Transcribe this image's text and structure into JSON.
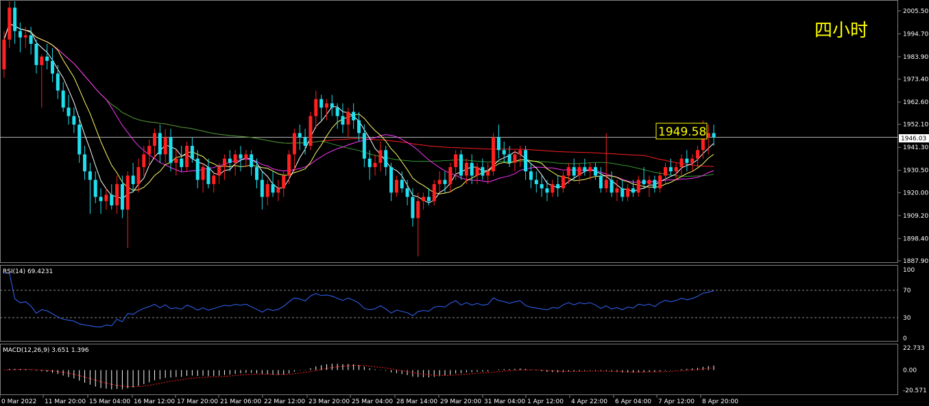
{
  "title_cn": "四小时",
  "price_label": "1949.58",
  "current_price": "1946.03",
  "colors": {
    "background": "#000000",
    "bull": "#ff2020",
    "bear": "#20e0f0",
    "ma_fast": "#ffffff",
    "ma_yellow": "#ffff66",
    "ma_magenta": "#ff33ff",
    "ma_green": "#339933",
    "ma_red": "#ff2020",
    "rsi_line": "#3366ff",
    "macd_signal": "#ff2020",
    "macd_hist": "#ffffff",
    "grid": "#808080",
    "title": "#ffff00"
  },
  "price_axis": {
    "ticks": [
      "2005.50",
      "1994.70",
      "1983.90",
      "1973.40",
      "1962.60",
      "1952.10",
      "1941.30",
      "1930.50",
      "1920.00",
      "1909.20",
      "1898.40",
      "1887.90"
    ]
  },
  "rsi_panel": {
    "label": "RSI(14) 69.4231",
    "ticks": [
      "100",
      "70",
      "30",
      "0"
    ],
    "level_high": 70,
    "level_low": 30
  },
  "macd_panel": {
    "label": "MACD(12,26,9) 3.651 1.396",
    "ticks": [
      "22.733",
      "0.00",
      "-20.571"
    ]
  },
  "time_axis": {
    "labels": [
      "0 Mar 2022",
      "11 Mar 20:00",
      "15 Mar 04:00",
      "16 Mar 12:00",
      "17 Mar 20:00",
      "21 Mar 06:00",
      "22 Mar 12:00",
      "23 Mar 20:00",
      "25 Mar 04:00",
      "28 Mar 14:00",
      "29 Mar 20:00",
      "31 Mar 04:00",
      "1 Apr 12:00",
      "4 Apr 22:00",
      "6 Apr 04:00",
      "7 Apr 12:00",
      "8 Apr 20:00"
    ]
  },
  "chart_data": {
    "type": "candlestick",
    "symbol_timeframe": "四小时",
    "y_range": [
      1887.9,
      2009
    ],
    "last_price": 1946.03,
    "candles": [
      {
        "o": 1978,
        "h": 1996,
        "l": 1974,
        "c": 1992
      },
      {
        "o": 1992,
        "h": 2010,
        "l": 1988,
        "c": 2007
      },
      {
        "o": 2007,
        "h": 2010,
        "l": 1990,
        "c": 1996
      },
      {
        "o": 1996,
        "h": 2000,
        "l": 1986,
        "c": 1993
      },
      {
        "o": 1993,
        "h": 1998,
        "l": 1988,
        "c": 1994
      },
      {
        "o": 1994,
        "h": 1998,
        "l": 1985,
        "c": 1990
      },
      {
        "o": 1990,
        "h": 1992,
        "l": 1976,
        "c": 1980
      },
      {
        "o": 1980,
        "h": 1985,
        "l": 1960,
        "c": 1984
      },
      {
        "o": 1984,
        "h": 1990,
        "l": 1978,
        "c": 1982
      },
      {
        "o": 1982,
        "h": 1988,
        "l": 1972,
        "c": 1976
      },
      {
        "o": 1976,
        "h": 1980,
        "l": 1964,
        "c": 1968
      },
      {
        "o": 1968,
        "h": 1972,
        "l": 1958,
        "c": 1960
      },
      {
        "o": 1960,
        "h": 1966,
        "l": 1952,
        "c": 1956
      },
      {
        "o": 1956,
        "h": 1960,
        "l": 1948,
        "c": 1952
      },
      {
        "o": 1952,
        "h": 1956,
        "l": 1934,
        "c": 1938
      },
      {
        "o": 1938,
        "h": 1942,
        "l": 1926,
        "c": 1930
      },
      {
        "o": 1930,
        "h": 1934,
        "l": 1910,
        "c": 1926
      },
      {
        "o": 1926,
        "h": 1930,
        "l": 1915,
        "c": 1918
      },
      {
        "o": 1918,
        "h": 1922,
        "l": 1910,
        "c": 1916
      },
      {
        "o": 1916,
        "h": 1922,
        "l": 1912,
        "c": 1919
      },
      {
        "o": 1919,
        "h": 1924,
        "l": 1912,
        "c": 1914
      },
      {
        "o": 1914,
        "h": 1928,
        "l": 1910,
        "c": 1924
      },
      {
        "o": 1924,
        "h": 1928,
        "l": 1908,
        "c": 1912
      },
      {
        "o": 1912,
        "h": 1930,
        "l": 1894,
        "c": 1928
      },
      {
        "o": 1928,
        "h": 1934,
        "l": 1920,
        "c": 1924
      },
      {
        "o": 1924,
        "h": 1936,
        "l": 1920,
        "c": 1932
      },
      {
        "o": 1932,
        "h": 1942,
        "l": 1928,
        "c": 1938
      },
      {
        "o": 1938,
        "h": 1945,
        "l": 1932,
        "c": 1942
      },
      {
        "o": 1942,
        "h": 1950,
        "l": 1936,
        "c": 1948
      },
      {
        "o": 1948,
        "h": 1952,
        "l": 1934,
        "c": 1938
      },
      {
        "o": 1938,
        "h": 1950,
        "l": 1934,
        "c": 1946
      },
      {
        "o": 1946,
        "h": 1950,
        "l": 1930,
        "c": 1934
      },
      {
        "o": 1934,
        "h": 1940,
        "l": 1928,
        "c": 1936
      },
      {
        "o": 1936,
        "h": 1942,
        "l": 1930,
        "c": 1932
      },
      {
        "o": 1932,
        "h": 1944,
        "l": 1930,
        "c": 1942
      },
      {
        "o": 1942,
        "h": 1946,
        "l": 1934,
        "c": 1936
      },
      {
        "o": 1936,
        "h": 1940,
        "l": 1922,
        "c": 1926
      },
      {
        "o": 1926,
        "h": 1934,
        "l": 1920,
        "c": 1932
      },
      {
        "o": 1932,
        "h": 1936,
        "l": 1922,
        "c": 1924
      },
      {
        "o": 1924,
        "h": 1930,
        "l": 1920,
        "c": 1928
      },
      {
        "o": 1928,
        "h": 1934,
        "l": 1924,
        "c": 1932
      },
      {
        "o": 1932,
        "h": 1938,
        "l": 1926,
        "c": 1936
      },
      {
        "o": 1936,
        "h": 1940,
        "l": 1930,
        "c": 1934
      },
      {
        "o": 1934,
        "h": 1940,
        "l": 1928,
        "c": 1938
      },
      {
        "o": 1938,
        "h": 1942,
        "l": 1930,
        "c": 1936
      },
      {
        "o": 1936,
        "h": 1940,
        "l": 1932,
        "c": 1938
      },
      {
        "o": 1938,
        "h": 1940,
        "l": 1928,
        "c": 1932
      },
      {
        "o": 1932,
        "h": 1936,
        "l": 1922,
        "c": 1926
      },
      {
        "o": 1926,
        "h": 1930,
        "l": 1912,
        "c": 1918
      },
      {
        "o": 1918,
        "h": 1926,
        "l": 1914,
        "c": 1924
      },
      {
        "o": 1924,
        "h": 1930,
        "l": 1918,
        "c": 1920
      },
      {
        "o": 1920,
        "h": 1926,
        "l": 1916,
        "c": 1922
      },
      {
        "o": 1922,
        "h": 1930,
        "l": 1918,
        "c": 1928
      },
      {
        "o": 1928,
        "h": 1940,
        "l": 1924,
        "c": 1938
      },
      {
        "o": 1938,
        "h": 1950,
        "l": 1930,
        "c": 1948
      },
      {
        "o": 1948,
        "h": 1952,
        "l": 1940,
        "c": 1946
      },
      {
        "o": 1946,
        "h": 1950,
        "l": 1938,
        "c": 1942
      },
      {
        "o": 1942,
        "h": 1958,
        "l": 1940,
        "c": 1956
      },
      {
        "o": 1956,
        "h": 1968,
        "l": 1950,
        "c": 1964
      },
      {
        "o": 1964,
        "h": 1966,
        "l": 1954,
        "c": 1960
      },
      {
        "o": 1960,
        "h": 1964,
        "l": 1954,
        "c": 1962
      },
      {
        "o": 1962,
        "h": 1966,
        "l": 1956,
        "c": 1960
      },
      {
        "o": 1960,
        "h": 1962,
        "l": 1950,
        "c": 1956
      },
      {
        "o": 1956,
        "h": 1962,
        "l": 1948,
        "c": 1952
      },
      {
        "o": 1952,
        "h": 1960,
        "l": 1946,
        "c": 1958
      },
      {
        "o": 1958,
        "h": 1962,
        "l": 1950,
        "c": 1954
      },
      {
        "o": 1954,
        "h": 1958,
        "l": 1944,
        "c": 1948
      },
      {
        "o": 1948,
        "h": 1952,
        "l": 1932,
        "c": 1936
      },
      {
        "o": 1936,
        "h": 1940,
        "l": 1926,
        "c": 1932
      },
      {
        "o": 1932,
        "h": 1938,
        "l": 1928,
        "c": 1934
      },
      {
        "o": 1934,
        "h": 1944,
        "l": 1930,
        "c": 1940
      },
      {
        "o": 1940,
        "h": 1942,
        "l": 1928,
        "c": 1932
      },
      {
        "o": 1932,
        "h": 1934,
        "l": 1916,
        "c": 1920
      },
      {
        "o": 1920,
        "h": 1928,
        "l": 1918,
        "c": 1926
      },
      {
        "o": 1926,
        "h": 1930,
        "l": 1920,
        "c": 1922
      },
      {
        "o": 1922,
        "h": 1926,
        "l": 1914,
        "c": 1918
      },
      {
        "o": 1918,
        "h": 1922,
        "l": 1904,
        "c": 1908
      },
      {
        "o": 1908,
        "h": 1920,
        "l": 1890,
        "c": 1916
      },
      {
        "o": 1916,
        "h": 1920,
        "l": 1912,
        "c": 1918
      },
      {
        "o": 1918,
        "h": 1922,
        "l": 1914,
        "c": 1916
      },
      {
        "o": 1916,
        "h": 1926,
        "l": 1914,
        "c": 1924
      },
      {
        "o": 1924,
        "h": 1930,
        "l": 1920,
        "c": 1926
      },
      {
        "o": 1926,
        "h": 1930,
        "l": 1920,
        "c": 1924
      },
      {
        "o": 1924,
        "h": 1934,
        "l": 1920,
        "c": 1932
      },
      {
        "o": 1932,
        "h": 1940,
        "l": 1926,
        "c": 1938
      },
      {
        "o": 1938,
        "h": 1940,
        "l": 1926,
        "c": 1928
      },
      {
        "o": 1928,
        "h": 1936,
        "l": 1924,
        "c": 1934
      },
      {
        "o": 1934,
        "h": 1938,
        "l": 1924,
        "c": 1928
      },
      {
        "o": 1928,
        "h": 1934,
        "l": 1924,
        "c": 1932
      },
      {
        "o": 1932,
        "h": 1936,
        "l": 1926,
        "c": 1928
      },
      {
        "o": 1928,
        "h": 1934,
        "l": 1924,
        "c": 1930
      },
      {
        "o": 1930,
        "h": 1948,
        "l": 1928,
        "c": 1946
      },
      {
        "o": 1946,
        "h": 1952,
        "l": 1936,
        "c": 1940
      },
      {
        "o": 1940,
        "h": 1944,
        "l": 1934,
        "c": 1938
      },
      {
        "o": 1938,
        "h": 1942,
        "l": 1932,
        "c": 1934
      },
      {
        "o": 1934,
        "h": 1940,
        "l": 1930,
        "c": 1938
      },
      {
        "o": 1938,
        "h": 1942,
        "l": 1932,
        "c": 1940
      },
      {
        "o": 1940,
        "h": 1942,
        "l": 1926,
        "c": 1930
      },
      {
        "o": 1930,
        "h": 1934,
        "l": 1922,
        "c": 1926
      },
      {
        "o": 1926,
        "h": 1930,
        "l": 1920,
        "c": 1924
      },
      {
        "o": 1924,
        "h": 1928,
        "l": 1918,
        "c": 1922
      },
      {
        "o": 1922,
        "h": 1926,
        "l": 1916,
        "c": 1920
      },
      {
        "o": 1920,
        "h": 1926,
        "l": 1918,
        "c": 1924
      },
      {
        "o": 1924,
        "h": 1928,
        "l": 1918,
        "c": 1922
      },
      {
        "o": 1922,
        "h": 1930,
        "l": 1920,
        "c": 1928
      },
      {
        "o": 1928,
        "h": 1934,
        "l": 1924,
        "c": 1932
      },
      {
        "o": 1932,
        "h": 1936,
        "l": 1926,
        "c": 1928
      },
      {
        "o": 1928,
        "h": 1934,
        "l": 1924,
        "c": 1932
      },
      {
        "o": 1932,
        "h": 1936,
        "l": 1928,
        "c": 1930
      },
      {
        "o": 1930,
        "h": 1934,
        "l": 1926,
        "c": 1932
      },
      {
        "o": 1932,
        "h": 1934,
        "l": 1926,
        "c": 1928
      },
      {
        "o": 1928,
        "h": 1932,
        "l": 1920,
        "c": 1922
      },
      {
        "o": 1922,
        "h": 1948,
        "l": 1920,
        "c": 1926
      },
      {
        "o": 1926,
        "h": 1930,
        "l": 1918,
        "c": 1920
      },
      {
        "o": 1920,
        "h": 1926,
        "l": 1916,
        "c": 1922
      },
      {
        "o": 1922,
        "h": 1926,
        "l": 1916,
        "c": 1918
      },
      {
        "o": 1918,
        "h": 1924,
        "l": 1916,
        "c": 1922
      },
      {
        "o": 1922,
        "h": 1926,
        "l": 1918,
        "c": 1920
      },
      {
        "o": 1920,
        "h": 1928,
        "l": 1918,
        "c": 1926
      },
      {
        "o": 1926,
        "h": 1932,
        "l": 1922,
        "c": 1924
      },
      {
        "o": 1924,
        "h": 1928,
        "l": 1918,
        "c": 1926
      },
      {
        "o": 1926,
        "h": 1928,
        "l": 1920,
        "c": 1922
      },
      {
        "o": 1922,
        "h": 1930,
        "l": 1920,
        "c": 1928
      },
      {
        "o": 1928,
        "h": 1934,
        "l": 1924,
        "c": 1932
      },
      {
        "o": 1932,
        "h": 1936,
        "l": 1928,
        "c": 1930
      },
      {
        "o": 1930,
        "h": 1934,
        "l": 1926,
        "c": 1932
      },
      {
        "o": 1932,
        "h": 1938,
        "l": 1928,
        "c": 1936
      },
      {
        "o": 1936,
        "h": 1940,
        "l": 1930,
        "c": 1934
      },
      {
        "o": 1934,
        "h": 1938,
        "l": 1930,
        "c": 1936
      },
      {
        "o": 1936,
        "h": 1942,
        "l": 1932,
        "c": 1940
      },
      {
        "o": 1940,
        "h": 1954,
        "l": 1936,
        "c": 1946
      },
      {
        "o": 1946,
        "h": 1952,
        "l": 1938,
        "c": 1948
      },
      {
        "o": 1948,
        "h": 1952,
        "l": 1942,
        "c": 1946
      }
    ],
    "moving_averages": [
      {
        "name": "MA fast",
        "color": "#ffffff",
        "period": 5
      },
      {
        "name": "MA 10",
        "color": "#ffff66",
        "period": 10
      },
      {
        "name": "MA 20",
        "color": "#ff33ff",
        "period": 20
      },
      {
        "name": "MA 60",
        "color": "#339933",
        "period": 60
      },
      {
        "name": "MA 120",
        "color": "#ff2020",
        "period": 120
      }
    ],
    "rsi": {
      "period": 14,
      "last": 69.4231,
      "range": [
        0,
        100
      ]
    },
    "macd": {
      "fast": 12,
      "slow": 26,
      "signal": 9,
      "macd": 3.651,
      "signal_value": 1.396,
      "range": [
        -20.571,
        22.733
      ]
    }
  }
}
